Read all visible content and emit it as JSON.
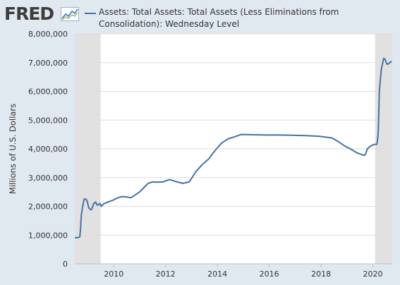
{
  "header": {
    "logo_text": "FRED",
    "logo_icon": "fred-chart-icon"
  },
  "chart_data": {
    "type": "line",
    "title": "",
    "xlabel": "",
    "ylabel": "Millions of U.S. Dollars",
    "xlim": [
      "2008-07-01",
      "2020-09-30"
    ],
    "ylim": [
      0,
      8000000
    ],
    "y_ticks": [
      "0",
      "1,000,000",
      "2,000,000",
      "3,000,000",
      "4,000,000",
      "5,000,000",
      "6,000,000",
      "7,000,000",
      "8,000,000"
    ],
    "x_ticks": [
      "2010",
      "2012",
      "2014",
      "2016",
      "2018",
      "2020"
    ],
    "grid": "horizontal",
    "legend_position": "top",
    "recession_bands": [
      {
        "start": "2008-07-01",
        "end": "2009-06-30"
      },
      {
        "start": "2020-02-01",
        "end": "2020-09-30"
      }
    ],
    "colors": {
      "series": "#4572a7",
      "recession": "#e1e1e1",
      "grid": "#dddddd",
      "plot_bg": "#ffffff",
      "page_bg": "#e1e9f0"
    },
    "series": [
      {
        "name": "Assets: Total Assets: Total Assets (Less Eliminations from Consolidation): Wednesday Level",
        "x": [
          "2008-07-01",
          "2008-08-15",
          "2008-09-10",
          "2008-09-20",
          "2008-10-01",
          "2008-10-20",
          "2008-11-10",
          "2008-12-05",
          "2008-12-20",
          "2009-01-15",
          "2009-02-10",
          "2009-02-25",
          "2009-03-25",
          "2009-04-20",
          "2009-05-10",
          "2009-05-25",
          "2009-06-20",
          "2009-07-10",
          "2009-08-10",
          "2009-09-10",
          "2009-10-10",
          "2009-11-10",
          "2009-12-10",
          "2010-01-10",
          "2010-03-01",
          "2010-05-01",
          "2010-07-01",
          "2010-09-01",
          "2010-11-01",
          "2011-01-01",
          "2011-03-01",
          "2011-05-01",
          "2011-06-30",
          "2011-09-01",
          "2011-12-01",
          "2012-01-15",
          "2012-03-01",
          "2012-06-01",
          "2012-09-01",
          "2012-12-01",
          "2013-03-01",
          "2013-06-01",
          "2013-09-01",
          "2013-12-01",
          "2014-03-01",
          "2014-06-01",
          "2014-09-01",
          "2014-12-01",
          "2015-06-01",
          "2015-12-01",
          "2016-06-01",
          "2016-12-01",
          "2017-06-01",
          "2017-12-01",
          "2018-06-01",
          "2018-09-01",
          "2018-12-01",
          "2019-03-01",
          "2019-06-01",
          "2019-09-01",
          "2019-09-20",
          "2019-10-15",
          "2019-12-01",
          "2020-01-15",
          "2020-02-26",
          "2020-03-11",
          "2020-03-18",
          "2020-03-25",
          "2020-04-01",
          "2020-04-15",
          "2020-05-01",
          "2020-06-03",
          "2020-06-24",
          "2020-07-15",
          "2020-08-01",
          "2020-08-26",
          "2020-09-23"
        ],
        "y": [
          910000,
          910000,
          940000,
          1200000,
          1700000,
          2000000,
          2250000,
          2250000,
          2200000,
          1950000,
          1880000,
          1900000,
          2100000,
          2150000,
          2050000,
          2050000,
          2100000,
          2000000,
          2080000,
          2120000,
          2150000,
          2180000,
          2200000,
          2240000,
          2300000,
          2340000,
          2330000,
          2300000,
          2400000,
          2500000,
          2650000,
          2800000,
          2850000,
          2840000,
          2850000,
          2900000,
          2930000,
          2860000,
          2800000,
          2850000,
          3200000,
          3450000,
          3650000,
          3950000,
          4200000,
          4350000,
          4420000,
          4500000,
          4490000,
          4480000,
          4480000,
          4470000,
          4460000,
          4440000,
          4380000,
          4250000,
          4100000,
          3980000,
          3850000,
          3770000,
          3820000,
          4000000,
          4100000,
          4150000,
          4160000,
          4400000,
          4700000,
          5300000,
          6000000,
          6400000,
          6800000,
          7150000,
          7100000,
          6950000,
          6950000,
          7000000,
          7050000
        ]
      }
    ]
  }
}
